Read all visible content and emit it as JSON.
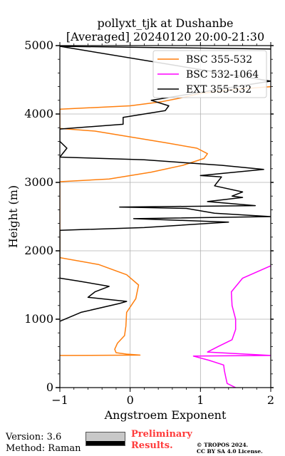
{
  "chart_data": {
    "type": "line",
    "title_line1": "pollyxt_tjk at Dushanbe",
    "title_line2": "[Averaged] 20240120 20:00-21:30",
    "xlabel": "Angstroem Exponent",
    "ylabel": "Height (m)",
    "xlim": [
      -1,
      2
    ],
    "ylim": [
      0,
      5000
    ],
    "x_ticks": [
      -1,
      0,
      1,
      2
    ],
    "y_ticks": [
      0,
      1000,
      2000,
      3000,
      4000,
      5000
    ],
    "grid": true,
    "legend_position": "top-right",
    "series": [
      {
        "name": "BSC 355-532",
        "color": "#ff7f0e",
        "points": [
          [
            -1.0,
            470
          ],
          [
            0.14,
            475
          ],
          [
            -0.05,
            490
          ],
          [
            -0.2,
            510
          ],
          [
            -0.22,
            560
          ],
          [
            -0.18,
            650
          ],
          [
            -0.08,
            760
          ],
          [
            -0.06,
            900
          ],
          [
            -0.05,
            1100
          ],
          [
            0.08,
            1300
          ],
          [
            0.12,
            1500
          ],
          [
            -0.05,
            1650
          ],
          [
            -0.45,
            1800
          ],
          [
            -1.0,
            1900
          ],
          [
            -1.0,
            3010
          ],
          [
            -0.3,
            3050
          ],
          [
            0.3,
            3150
          ],
          [
            0.75,
            3250
          ],
          [
            1.05,
            3350
          ],
          [
            1.1,
            3420
          ],
          [
            0.95,
            3500
          ],
          [
            0.5,
            3580
          ],
          [
            -0.5,
            3750
          ],
          [
            -1.0,
            3790
          ],
          [
            -1.0,
            4070
          ],
          [
            0.0,
            4120
          ],
          [
            0.45,
            4180
          ],
          [
            0.7,
            4230
          ],
          [
            1.0,
            4300
          ],
          [
            1.5,
            4360
          ],
          [
            2.0,
            4400
          ]
        ]
      },
      {
        "name": "BSC 532-1064",
        "color": "#ff00ff",
        "points": [
          [
            1.5,
            0
          ],
          [
            1.38,
            60
          ],
          [
            1.36,
            150
          ],
          [
            1.34,
            250
          ],
          [
            1.33,
            330
          ],
          [
            1.12,
            400
          ],
          [
            0.9,
            460
          ],
          [
            2.0,
            470
          ],
          [
            1.1,
            520
          ],
          [
            1.25,
            600
          ],
          [
            1.45,
            700
          ],
          [
            1.5,
            850
          ],
          [
            1.5,
            1000
          ],
          [
            1.45,
            1200
          ],
          [
            1.44,
            1400
          ],
          [
            1.6,
            1600
          ],
          [
            2.0,
            1780
          ]
        ]
      },
      {
        "name": "EXT 355-532",
        "color": "#000000",
        "points": [
          [
            -1.0,
            970
          ],
          [
            -0.7,
            1100
          ],
          [
            -0.15,
            1230
          ],
          [
            -0.05,
            1260
          ],
          [
            -0.6,
            1320
          ],
          [
            -0.5,
            1400
          ],
          [
            -0.3,
            1480
          ],
          [
            -0.75,
            1560
          ],
          [
            -1.0,
            1600
          ],
          [
            -1.0,
            2300
          ],
          [
            0.2,
            2340
          ],
          [
            1.4,
            2420
          ],
          [
            0.05,
            2470
          ],
          [
            2.0,
            2500
          ],
          [
            1.2,
            2550
          ],
          [
            0.8,
            2620
          ],
          [
            -0.15,
            2640
          ],
          [
            1.78,
            2660
          ],
          [
            1.1,
            2720
          ],
          [
            1.6,
            2780
          ],
          [
            1.45,
            2800
          ],
          [
            1.6,
            2860
          ],
          [
            1.2,
            2950
          ],
          [
            1.3,
            3080
          ],
          [
            1.0,
            3100
          ],
          [
            1.9,
            3190
          ],
          [
            1.3,
            3250
          ],
          [
            0.2,
            3330
          ],
          [
            -1.0,
            3370
          ],
          [
            -0.9,
            3500
          ],
          [
            -1.0,
            3600
          ],
          [
            -1.0,
            3780
          ],
          [
            -0.1,
            3850
          ],
          [
            -0.1,
            3950
          ],
          [
            0.2,
            4000
          ],
          [
            0.5,
            4050
          ],
          [
            0.55,
            4120
          ],
          [
            0.3,
            4200
          ],
          [
            0.6,
            4250
          ],
          [
            1.2,
            4350
          ],
          [
            2.0,
            4480
          ],
          [
            -1.0,
            4990
          ],
          [
            2.0,
            4950
          ]
        ]
      }
    ]
  },
  "footer": {
    "version": "Version: 3.6",
    "method": "Method: Raman",
    "preliminary_line1": "Preliminary",
    "preliminary_line2": "Results.",
    "copyright_line1": "© TROPOS 2024.",
    "copyright_line2": "CC BY SA 4.0 License."
  }
}
